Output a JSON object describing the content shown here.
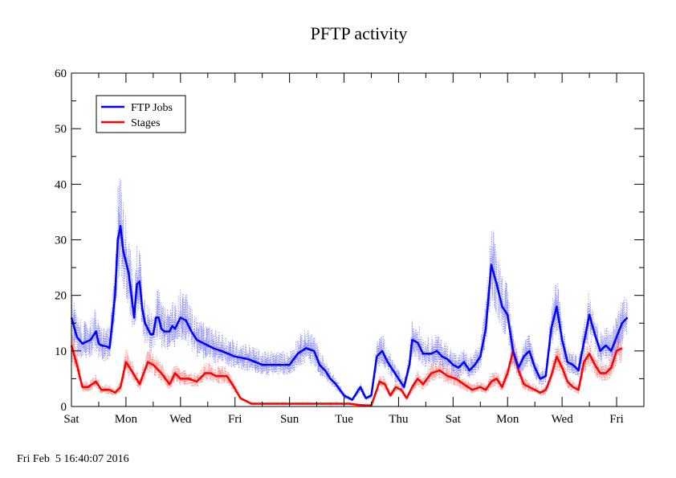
{
  "footer_timestamp": "Fri Feb  5 16:40:07 2016",
  "chart_data": {
    "type": "line",
    "title": "PFTP activity",
    "xlabel": "",
    "ylabel": "",
    "xlim": [
      0,
      21
    ],
    "ylim": [
      0,
      60
    ],
    "yticks": [
      0,
      10,
      20,
      30,
      40,
      50,
      60
    ],
    "x_tick_days": [
      0,
      2,
      4,
      6,
      8,
      10,
      12,
      14,
      16,
      18,
      20
    ],
    "x_tick_labels": [
      "Sat",
      "Mon",
      "Wed",
      "Fri",
      "Sun",
      "Tue",
      "Thu",
      "Sat",
      "Mon",
      "Wed",
      "Fri"
    ],
    "grid": false,
    "legend": {
      "position": "top-left",
      "entries": [
        "FTP Jobs",
        "Stages"
      ]
    },
    "series": [
      {
        "name": "FTP Jobs",
        "color": "#0000ff",
        "noise_color": "#8080ff",
        "x": [
          0,
          0.2,
          0.4,
          0.7,
          0.9,
          1.0,
          1.1,
          1.3,
          1.4,
          1.6,
          1.7,
          1.8,
          1.9,
          2.0,
          2.1,
          2.2,
          2.3,
          2.4,
          2.5,
          2.6,
          2.7,
          2.8,
          2.9,
          3.0,
          3.1,
          3.2,
          3.3,
          3.4,
          3.6,
          3.7,
          3.8,
          4.0,
          4.2,
          4.4,
          4.6,
          4.8,
          5.0,
          5.2,
          5.5,
          6.0,
          6.5,
          7.0,
          7.5,
          8.0,
          8.3,
          8.6,
          8.9,
          9.1,
          9.3,
          9.5,
          9.7,
          10.0,
          10.3,
          10.6,
          10.8,
          11.0,
          11.2,
          11.4,
          11.6,
          11.8,
          12.0,
          12.2,
          12.4,
          12.5,
          12.7,
          12.9,
          13.0,
          13.2,
          13.4,
          13.6,
          13.8,
          14.0,
          14.2,
          14.4,
          14.6,
          14.8,
          15.0,
          15.2,
          15.4,
          15.6,
          15.8,
          16.0,
          16.2,
          16.4,
          16.6,
          16.8,
          17.0,
          17.2,
          17.4,
          17.6,
          17.8,
          18.0,
          18.2,
          18.4,
          18.6,
          18.8,
          19.0,
          19.2,
          19.4,
          19.6,
          19.8,
          20.0,
          20.2,
          20.4
        ],
        "values": [
          16,
          12.5,
          11.3,
          12.0,
          13.5,
          11.3,
          11.0,
          10.8,
          10.5,
          20.0,
          30.0,
          32.5,
          28.0,
          26.0,
          24.0,
          20.0,
          16.0,
          22.0,
          22.5,
          17.5,
          15.0,
          14.0,
          13.0,
          13.0,
          16.0,
          16.0,
          14.0,
          13.5,
          13.5,
          14.5,
          14.0,
          16.0,
          15.5,
          13.5,
          12.0,
          11.5,
          11.0,
          10.5,
          10.0,
          9.0,
          8.5,
          7.5,
          7.5,
          7.5,
          9.5,
          10.5,
          10.0,
          7.5,
          6.5,
          5.0,
          4.0,
          2.0,
          1.2,
          3.5,
          1.5,
          2.0,
          9.0,
          10.0,
          8.0,
          6.5,
          5.0,
          3.5,
          7.5,
          12.0,
          11.5,
          9.5,
          9.5,
          9.5,
          10.0,
          9.0,
          8.5,
          7.5,
          7.0,
          8.0,
          6.5,
          7.5,
          9.0,
          14.0,
          25.5,
          22.0,
          18.0,
          16.5,
          10.0,
          7.0,
          9.0,
          10.0,
          7.0,
          5.0,
          5.5,
          14.0,
          18.0,
          12.0,
          8.0,
          7.5,
          6.5,
          11.5,
          16.5,
          13.0,
          10.0,
          11.0,
          10.0,
          12.5,
          15.0,
          16.0
        ]
      },
      {
        "name": "Stages",
        "color": "#ff0000",
        "noise_color": "#ff8080",
        "x": [
          0,
          0.2,
          0.4,
          0.6,
          0.9,
          1.1,
          1.4,
          1.6,
          1.8,
          2.0,
          2.2,
          2.5,
          2.8,
          3.0,
          3.3,
          3.6,
          3.8,
          4.0,
          4.3,
          4.6,
          4.9,
          5.1,
          5.3,
          5.5,
          5.7,
          5.9,
          6.2,
          6.6,
          7.0,
          7.4,
          7.8,
          8.2,
          8.6,
          9.0,
          9.4,
          9.8,
          10.2,
          10.5,
          10.8,
          11.0,
          11.2,
          11.3,
          11.5,
          11.7,
          11.9,
          12.1,
          12.3,
          12.5,
          12.7,
          12.9,
          13.2,
          13.5,
          13.8,
          14.1,
          14.4,
          14.7,
          15.0,
          15.2,
          15.4,
          15.6,
          15.8,
          16.0,
          16.2,
          16.4,
          16.6,
          16.8,
          17.0,
          17.2,
          17.4,
          17.6,
          17.8,
          18.0,
          18.2,
          18.4,
          18.6,
          18.8,
          19.0,
          19.2,
          19.4,
          19.6,
          19.8,
          20.0,
          20.2
        ],
        "values": [
          11,
          7.5,
          3.5,
          3.5,
          4.5,
          3.0,
          3.0,
          2.5,
          3.5,
          8.0,
          6.5,
          4.0,
          8.0,
          7.5,
          6.0,
          4.0,
          6.0,
          5.0,
          5.0,
          4.5,
          6.0,
          6.0,
          5.5,
          5.5,
          5.5,
          4.0,
          1.5,
          0.5,
          0.5,
          0.5,
          0.5,
          0.5,
          0.5,
          0.5,
          0.5,
          0.5,
          0.5,
          0.3,
          0.2,
          0.2,
          3.0,
          4.5,
          4.0,
          2.0,
          3.5,
          3.0,
          1.5,
          3.5,
          5.0,
          4.0,
          6.0,
          6.5,
          5.5,
          5.0,
          4.0,
          3.0,
          3.5,
          3.0,
          4.5,
          5.0,
          3.5,
          6.0,
          10.0,
          6.5,
          4.0,
          3.5,
          3.0,
          2.5,
          3.0,
          5.5,
          9.0,
          7.0,
          4.5,
          3.5,
          3.0,
          8.0,
          9.5,
          7.5,
          6.0,
          6.0,
          7.0,
          10.0,
          10.5
        ]
      }
    ]
  }
}
